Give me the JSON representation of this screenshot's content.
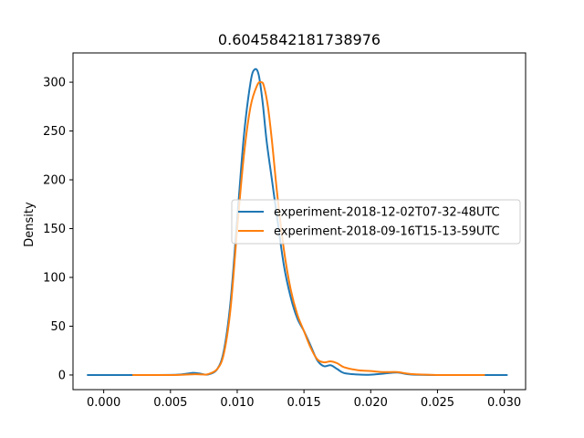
{
  "chart_data": {
    "type": "line",
    "title": "0.6045842181738976",
    "xlabel": "",
    "ylabel": "Density",
    "xlim": [
      -0.0023,
      0.0316
    ],
    "ylim": [
      -15,
      330
    ],
    "xticks": [
      0.0,
      0.005,
      0.01,
      0.015,
      0.02,
      0.025,
      0.03
    ],
    "xtick_labels": [
      "0.000",
      "0.005",
      "0.010",
      "0.015",
      "0.020",
      "0.025",
      "0.030"
    ],
    "yticks": [
      0,
      50,
      100,
      150,
      200,
      250,
      300
    ],
    "ytick_labels": [
      "0",
      "50",
      "100",
      "150",
      "200",
      "250",
      "300"
    ],
    "grid": false,
    "legend_position": "center-right",
    "series": [
      {
        "name": "experiment-2018-12-02T07-32-48UTC",
        "color": "#1f77b4",
        "x": [
          -0.0012,
          0.004,
          0.0055,
          0.0063,
          0.0067,
          0.0072,
          0.0078,
          0.0085,
          0.009,
          0.0095,
          0.01,
          0.0105,
          0.011,
          0.0113,
          0.0116,
          0.0119,
          0.0122,
          0.0126,
          0.013,
          0.0135,
          0.014,
          0.0145,
          0.015,
          0.0155,
          0.016,
          0.0165,
          0.017,
          0.0175,
          0.018,
          0.019,
          0.02,
          0.021,
          0.022,
          0.023,
          0.025,
          0.0302
        ],
        "y": [
          0,
          0,
          0.3,
          1.5,
          2.2,
          1.5,
          0.5,
          6,
          25,
          75,
          160,
          245,
          300,
          313,
          308,
          280,
          240,
          200,
          160,
          112,
          80,
          58,
          45,
          30,
          15,
          9,
          10,
          6,
          2,
          0.5,
          0.3,
          1.5,
          2.5,
          0.5,
          0,
          0
        ]
      },
      {
        "name": "experiment-2018-09-16T15-13-59UTC",
        "color": "#ff7f0e",
        "x": [
          0.0022,
          0.005,
          0.006,
          0.0068,
          0.0074,
          0.0078,
          0.0085,
          0.009,
          0.0095,
          0.01,
          0.0105,
          0.011,
          0.0115,
          0.0118,
          0.012,
          0.0123,
          0.0126,
          0.013,
          0.0135,
          0.014,
          0.0145,
          0.015,
          0.0155,
          0.016,
          0.0165,
          0.017,
          0.0175,
          0.018,
          0.019,
          0.02,
          0.021,
          0.022,
          0.023,
          0.025,
          0.0285
        ],
        "y": [
          0,
          0,
          0.3,
          0.8,
          0.5,
          0.8,
          6,
          22,
          68,
          150,
          225,
          275,
          297,
          300,
          296,
          275,
          240,
          185,
          128,
          88,
          62,
          45,
          28,
          16,
          13,
          14,
          12,
          8,
          5,
          4,
          3,
          3,
          1,
          0,
          0
        ]
      }
    ]
  }
}
